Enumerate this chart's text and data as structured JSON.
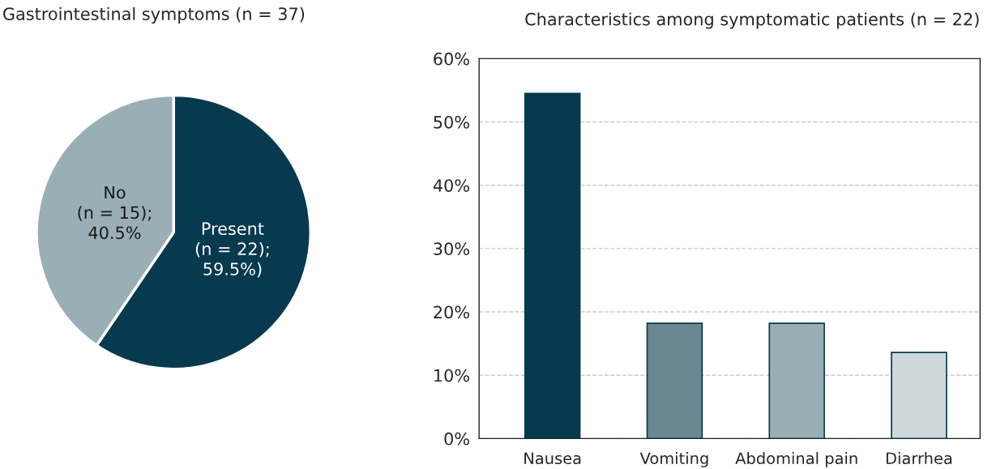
{
  "chart_data": [
    {
      "type": "pie",
      "title": "Gastrointestinal symptoms (n = 37)",
      "categories": [
        null,
        null
      ],
      "values": [
        59.5,
        40.5
      ],
      "colors": [
        "#073a4f",
        "#9aaeb5"
      ],
      "value_labels": [
        "Present\n(n = 22);\n59.5%)",
        "No\n(n = 15);\n40.5%"
      ]
    },
    {
      "type": "bar",
      "title": "Characteristics among symptomatic patients (n = 22)",
      "categories": [
        "Nausea",
        "Vomiting",
        "Abdominal pain",
        "Diarrhea"
      ],
      "values": [
        54.5,
        18.2,
        18.2,
        13.6
      ],
      "colors": [
        "#073a4f",
        "#6a8792",
        "#9aaeb5",
        "#ced8dd"
      ],
      "ylim": [
        0,
        60
      ],
      "yticks": [
        {
          "value": 0,
          "label": "0%"
        },
        {
          "value": 10,
          "label": "10%"
        },
        {
          "value": 20,
          "label": "20%"
        },
        {
          "value": 30,
          "label": "30%"
        },
        {
          "value": 40,
          "label": "40%"
        },
        {
          "value": 50,
          "label": "50%"
        },
        {
          "value": 60,
          "label": "60%"
        }
      ],
      "grid": "y"
    }
  ]
}
